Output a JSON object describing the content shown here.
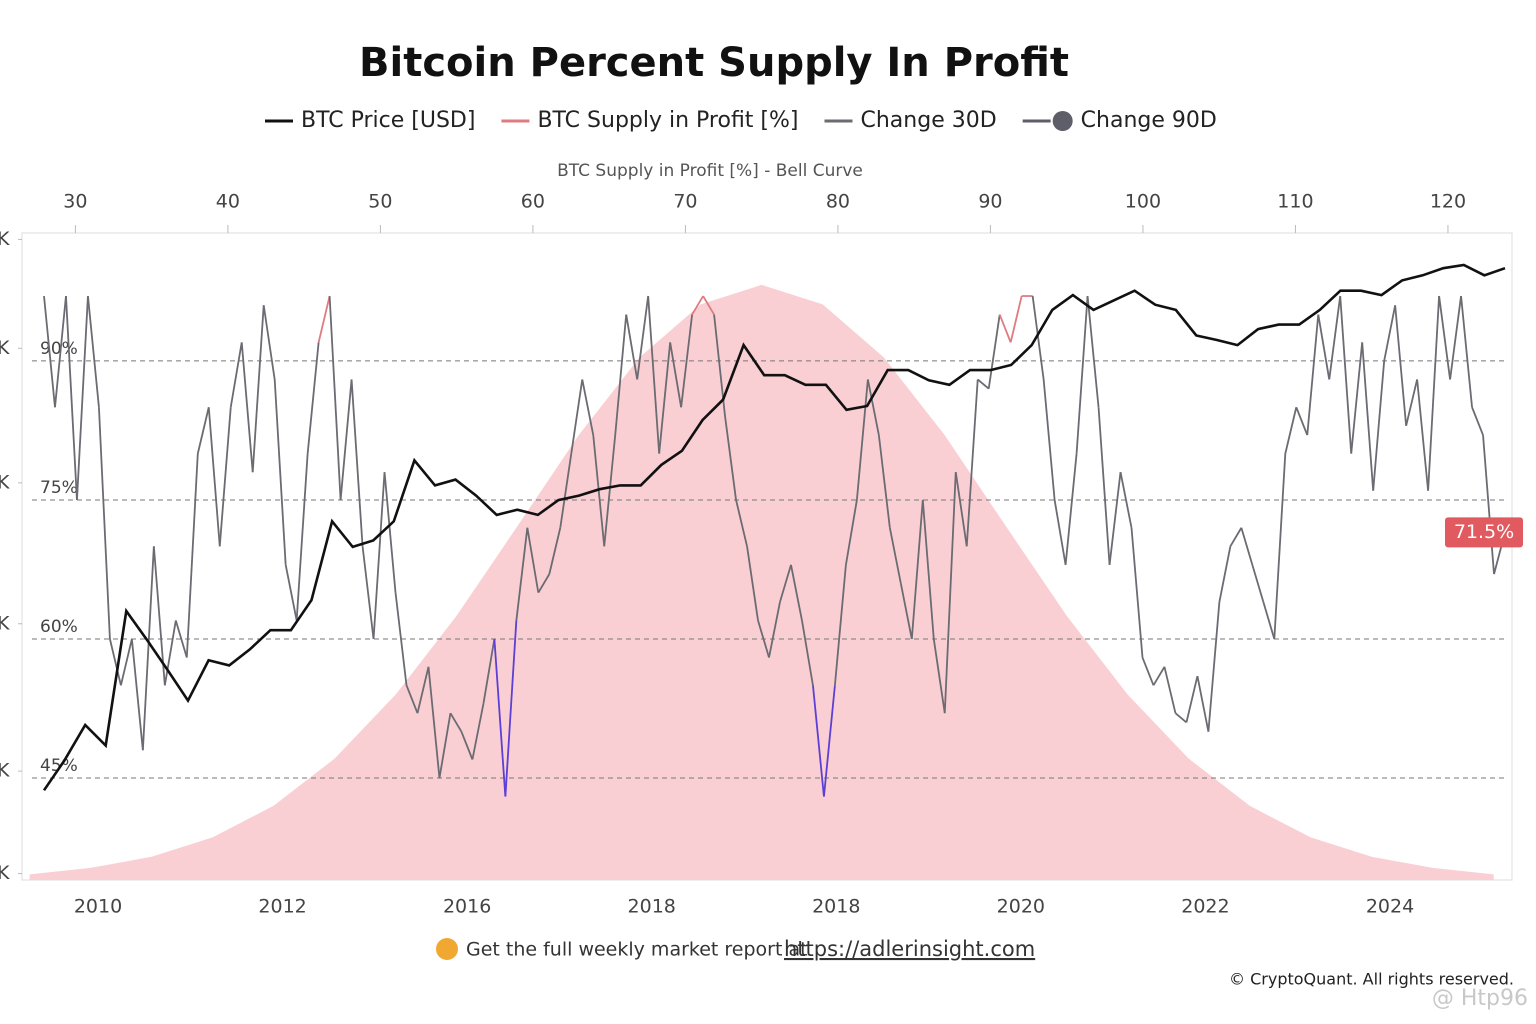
{
  "chart_data": {
    "type": "line",
    "title": "Bitcoin Percent Supply In Profit",
    "legend": [
      {
        "name": "BTC Price [USD]",
        "color": "#111111",
        "marker": "line"
      },
      {
        "name": "BTC Supply in Profit [%]",
        "color": "#e07b80",
        "marker": "line"
      },
      {
        "name": "Change 30D",
        "color": "#6b6b72",
        "marker": "line"
      },
      {
        "name": "Change 90D",
        "color": "#5e5e68",
        "marker": "dot"
      }
    ],
    "top_axis_title": "BTC Supply in Profit [%] - Bell Curve",
    "top_xlim": [
      26.5,
      124.2
    ],
    "top_xticks": [
      30,
      40,
      50,
      60,
      70,
      80,
      90,
      100,
      110,
      120
    ],
    "x_axis_labels": [
      "2010",
      "2012",
      "2016",
      "2018",
      "2018",
      "2020",
      "2022",
      "2024"
    ],
    "ylim": [
      34,
      103.8
    ],
    "yticks": [
      {
        "value": 90,
        "label": "90%"
      },
      {
        "value": 75,
        "label": "75%"
      },
      {
        "value": 60,
        "label": "60%"
      },
      {
        "value": 45,
        "label": "45%"
      }
    ],
    "y2lim": [
      -1,
      100
    ],
    "y2ticks": [
      {
        "value": 99,
        "label": "K"
      },
      {
        "value": 82,
        "label": "K"
      },
      {
        "value": 61,
        "label": "K"
      },
      {
        "value": 39,
        "label": "K"
      },
      {
        "value": 16,
        "label": "K"
      },
      {
        "value": 0,
        "label": "K"
      }
    ],
    "bell_curve": {
      "color": "#f9cfd3",
      "x": [
        27,
        31,
        35,
        39,
        43,
        47,
        51,
        55,
        59,
        63,
        67,
        71,
        75,
        79,
        83,
        87,
        91,
        95,
        99,
        103,
        107,
        111,
        115,
        119,
        123
      ],
      "values": [
        34.6,
        35.3,
        36.5,
        38.6,
        42.0,
        47.1,
        54.0,
        62.5,
        72.2,
        82.0,
        90.4,
        96.1,
        98.2,
        96.1,
        90.4,
        82.0,
        72.2,
        62.5,
        54.0,
        47.1,
        42.0,
        38.6,
        36.5,
        35.3,
        34.6
      ]
    },
    "price": {
      "color": "#111111",
      "axis": "y2",
      "values": [
        13,
        17.7,
        23.2,
        20,
        41,
        36.5,
        31.8,
        27,
        33.3,
        32.5,
        35,
        38,
        38,
        42.7,
        55,
        51,
        52,
        55,
        64.5,
        60.6,
        61.5,
        59,
        56,
        56.8,
        56,
        58.3,
        59,
        60,
        60.6,
        60.6,
        63.8,
        66,
        70.8,
        74,
        82.5,
        77.8,
        77.8,
        76.3,
        76.3,
        72.4,
        73,
        78.6,
        78.6,
        77,
        76.3,
        78.6,
        78.6,
        79.4,
        82.5,
        88,
        90.3,
        88,
        89.5,
        91,
        88.8,
        88,
        84,
        83.3,
        82.5,
        85,
        85.7,
        85.7,
        88,
        91,
        91,
        90.3,
        92.6,
        93.4,
        94.5,
        95,
        93.4,
        94.5
      ]
    },
    "supply": {
      "color": "#6b6b72",
      "high_color": "#e07b80",
      "low_color": "#5b3fd6",
      "high_threshold": 90,
      "low_threshold": 45,
      "values": [
        97,
        85,
        97,
        75,
        97,
        85,
        60,
        55,
        60,
        48,
        70,
        55,
        62,
        58,
        80,
        85,
        70,
        85,
        92,
        78,
        96,
        88,
        68,
        62,
        80,
        92,
        97,
        75,
        88,
        70,
        60,
        78,
        65,
        55,
        52,
        57,
        45,
        52,
        50,
        47,
        53,
        60,
        43,
        62,
        72,
        65,
        67,
        72,
        80,
        88,
        82,
        70,
        82,
        95,
        88,
        97,
        80,
        92,
        85,
        95,
        97,
        95,
        84,
        75,
        70,
        62,
        58,
        64,
        68,
        62,
        55,
        43,
        55,
        68,
        75,
        88,
        82,
        72,
        66,
        60,
        75,
        60,
        52,
        78,
        70,
        88,
        87,
        95,
        92,
        97,
        97,
        88,
        75,
        68,
        80,
        97,
        85,
        68,
        78,
        72,
        58,
        55,
        57,
        52,
        51,
        56,
        50,
        64,
        70,
        72,
        68,
        64,
        60,
        80,
        85,
        82,
        95,
        88,
        97,
        80,
        92,
        76,
        90,
        96,
        83,
        88,
        76,
        97,
        88,
        97,
        85,
        82,
        67,
        71.5
      ],
      "last_value_label": "71.5%",
      "label_color": "#e05a5f"
    },
    "footer_text": "Get the full weekly market report at",
    "footer_link": "https://adlerinsight.com",
    "copyright": "© CryptoQuant. All rights reserved.",
    "watermark": "@ Htp96"
  }
}
